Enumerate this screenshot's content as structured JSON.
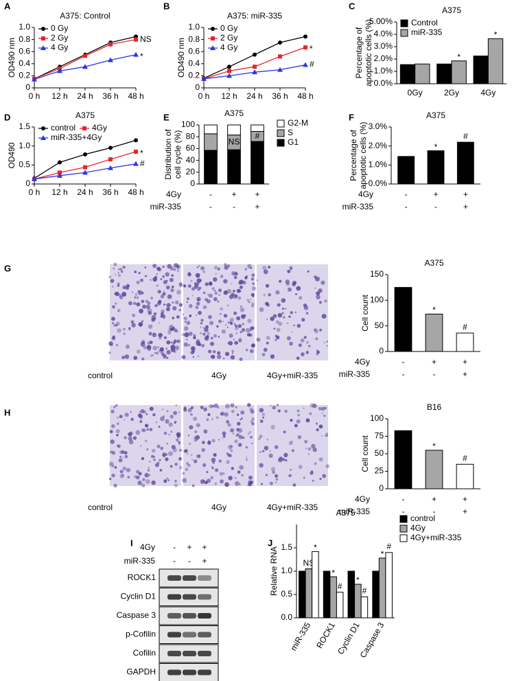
{
  "chart_data": [
    {
      "panel": "A",
      "type": "line",
      "title": "A375: Control",
      "ylabel": "OD490 nm",
      "categories": [
        "0 h",
        "12 h",
        "24 h",
        "36 h",
        "48 h"
      ],
      "ylim": [
        0,
        1
      ],
      "yticks": [
        0,
        0.2,
        0.4,
        0.6,
        0.8,
        {
          "value": 1,
          "label": "1.0"
        }
      ],
      "legend": "upper left",
      "series": [
        {
          "name": "0 Gy",
          "color": "#000000",
          "marker": "circle",
          "values": [
            0.15,
            0.35,
            0.55,
            0.75,
            0.85
          ]
        },
        {
          "name": "2 Gy",
          "color": "#e8262a",
          "marker": "square",
          "values": [
            0.15,
            0.32,
            0.53,
            0.72,
            0.8
          ],
          "annotations": [
            null,
            null,
            null,
            null,
            "NS"
          ]
        },
        {
          "name": "4 Gy",
          "color": "#2b35e8",
          "marker": "triangle",
          "values": [
            0.14,
            0.28,
            0.35,
            0.46,
            0.55
          ],
          "annotations": [
            null,
            null,
            null,
            null,
            "*"
          ]
        }
      ]
    },
    {
      "panel": "B",
      "type": "line",
      "title": "A375: miR-335",
      "ylabel": "OD490 nm",
      "categories": [
        "0 h",
        "12 h",
        "24 h",
        "36 h",
        "48 h"
      ],
      "ylim": [
        0,
        1
      ],
      "yticks": [
        0,
        0.2,
        0.4,
        0.6,
        0.8,
        {
          "value": 1,
          "label": "1.0"
        }
      ],
      "legend": "upper left",
      "series": [
        {
          "name": "0 Gy",
          "color": "#000000",
          "marker": "circle",
          "values": [
            0.16,
            0.35,
            0.55,
            0.75,
            0.85
          ]
        },
        {
          "name": "2 Gy",
          "color": "#e8262a",
          "marker": "square",
          "values": [
            0.15,
            0.28,
            0.35,
            0.52,
            0.67
          ],
          "annotations": [
            null,
            null,
            null,
            null,
            "*"
          ]
        },
        {
          "name": "4 Gy",
          "color": "#2b35e8",
          "marker": "triangle",
          "values": [
            0.15,
            0.2,
            0.26,
            0.3,
            0.38
          ],
          "annotations": [
            null,
            null,
            null,
            null,
            "#"
          ]
        }
      ]
    },
    {
      "panel": "C",
      "type": "bar",
      "title": "A375",
      "ylabel": [
        "Percentage of",
        "apoptotic cells (%)"
      ],
      "categories": [
        "0Gy",
        "2Gy",
        "4Gy"
      ],
      "ylim": [
        0,
        5
      ],
      "yticks": [
        {
          "value": 0,
          "label": "0.0%"
        },
        {
          "value": 1,
          "label": "1.0%"
        },
        {
          "value": 2,
          "label": "2.0%"
        },
        {
          "value": 3,
          "label": "3.0%"
        },
        {
          "value": 4,
          "label": "4.0%"
        },
        {
          "value": 5,
          "label": "5.00%"
        }
      ],
      "legend": "upper left",
      "series": [
        {
          "name": "Control",
          "color": "#000000",
          "values": [
            1.55,
            1.6,
            2.25
          ]
        },
        {
          "name": "miR-335",
          "color": "#a6a6a6",
          "values": [
            1.6,
            1.85,
            3.65
          ],
          "annotations": [
            null,
            "*",
            "*"
          ]
        }
      ]
    },
    {
      "panel": "D",
      "type": "line",
      "title": "A375",
      "ylabel": "OD490",
      "categories": [
        "0 h",
        "12 h",
        "24 h",
        "36 h",
        "48 h"
      ],
      "ylim": [
        0,
        1.5
      ],
      "yticks": [
        0,
        0.5,
        {
          "value": 1,
          "label": "1.0"
        },
        1.5
      ],
      "legend": "upper left",
      "legend_columns": 2,
      "series": [
        {
          "name": "control",
          "color": "#000000",
          "marker": "circle",
          "values": [
            0.15,
            0.57,
            0.78,
            0.95,
            1.15
          ]
        },
        {
          "name": "4Gy",
          "color": "#e8262a",
          "marker": "square",
          "values": [
            0.13,
            0.3,
            0.44,
            0.65,
            0.85
          ],
          "annotations": [
            null,
            null,
            null,
            null,
            "*"
          ]
        },
        {
          "name": "miR-335+4Gy",
          "color": "#2b35e8",
          "marker": "triangle",
          "values": [
            0.13,
            0.22,
            0.3,
            0.42,
            0.53
          ],
          "annotations": [
            null,
            null,
            null,
            null,
            "#"
          ]
        }
      ]
    },
    {
      "panel": "E",
      "type": "bar",
      "stacked": true,
      "title": "A375",
      "ylabel": [
        "Distribution of",
        "cell cycle (%)"
      ],
      "ylim": [
        0,
        100
      ],
      "yticks": [
        0,
        20,
        40,
        60,
        80,
        100
      ],
      "legend": "right",
      "legend_order": "reverse",
      "series": [
        {
          "name": "G1",
          "color": "#000000",
          "values": [
            57,
            58,
            72
          ]
        },
        {
          "name": "S",
          "color": "#a6a6a6",
          "values": [
            28,
            25,
            17
          ],
          "annotations": [
            null,
            "NS",
            "#"
          ]
        },
        {
          "name": "G2-M",
          "color": "#ffffff",
          "values": [
            15,
            17,
            11
          ]
        }
      ],
      "conditions": [
        {
          "name": "4Gy",
          "values": [
            "-",
            "+",
            "+"
          ]
        },
        {
          "name": "miR-335",
          "values": [
            "-",
            "-",
            "+"
          ]
        }
      ]
    },
    {
      "panel": "F",
      "type": "bar",
      "title": "A375",
      "ylabel": [
        "Percentage of",
        "apoptotic cells (%)"
      ],
      "ylim": [
        0,
        3
      ],
      "yticks": [
        {
          "value": 0,
          "label": "0.0%"
        },
        {
          "value": 1,
          "label": "1.0%"
        },
        {
          "value": 2,
          "label": "2.0%"
        },
        {
          "value": 3,
          "label": "3.0%"
        }
      ],
      "values": [
        1.45,
        1.75,
        2.2
      ],
      "colors": [
        "#000000",
        "#000000",
        "#000000"
      ],
      "annotations": [
        null,
        "*",
        "#"
      ],
      "conditions": [
        {
          "name": "4Gy",
          "values": [
            "-",
            "+",
            "+"
          ]
        },
        {
          "name": "miR-335",
          "values": [
            "-",
            "-",
            "+"
          ]
        }
      ]
    },
    {
      "type": "bar",
      "title": "A375",
      "ylabel": "Cell count",
      "ylim": [
        0,
        150
      ],
      "yticks": [
        0,
        50,
        100,
        150
      ],
      "values": [
        125,
        73,
        36
      ],
      "colors": [
        "#000000",
        "#a6a6a6",
        "#ffffff"
      ],
      "annotations": [
        null,
        "*",
        "#"
      ],
      "conditions": [
        {
          "name": "4Gy",
          "values": [
            "-",
            "+",
            "+"
          ]
        },
        {
          "name": "miR-335",
          "values": [
            "-",
            "-",
            "+"
          ]
        }
      ]
    },
    {
      "type": "bar",
      "title": "B16",
      "ylabel": "Cell count",
      "ylim": [
        0,
        100
      ],
      "yticks": [
        0,
        25,
        50,
        75,
        100
      ],
      "values": [
        83,
        55,
        35
      ],
      "colors": [
        "#000000",
        "#a6a6a6",
        "#ffffff"
      ],
      "annotations": [
        null,
        "*",
        "#"
      ],
      "conditions": [
        {
          "name": "4Gy",
          "values": [
            "-",
            "+",
            "+"
          ]
        },
        {
          "name": "miR-335",
          "values": [
            "-",
            "-",
            "+"
          ]
        }
      ]
    },
    {
      "panel": "J",
      "type": "bar",
      "title": "A375",
      "ylabel": "Relative RNA",
      "categories": [
        "miR-335",
        "ROCK1",
        "Cyclin D1",
        "Caspase 3"
      ],
      "xtick_rotation": -60,
      "ylim": [
        0,
        2
      ],
      "yticks": [
        {
          "value": 0,
          "label": "0.0"
        },
        0.5,
        {
          "value": 1,
          "label": "1.0"
        },
        1.5
      ],
      "legend": "outside right",
      "series": [
        {
          "name": "control",
          "color": "#000000",
          "values": [
            1,
            1,
            1,
            1
          ]
        },
        {
          "name": "4Gy",
          "color": "#a6a6a6",
          "values": [
            1.05,
            0.88,
            0.72,
            1.28
          ],
          "annotations": [
            "NS",
            "*",
            "*",
            "*"
          ]
        },
        {
          "name": "4Gy+miR-335",
          "color": "#ffffff",
          "values": [
            1.42,
            0.55,
            0.45,
            1.4
          ],
          "annotations": [
            "*",
            "#",
            "#",
            "#"
          ]
        }
      ]
    }
  ],
  "micrographs": [
    {
      "panel": "G",
      "labels": [
        "control",
        "4Gy",
        "4Gy+miR-335"
      ]
    },
    {
      "panel": "H",
      "labels": [
        "control",
        "4Gy",
        "4Gy+miR-335"
      ]
    }
  ],
  "western_blot": {
    "panel": "I",
    "conditions": [
      {
        "name": "4Gy",
        "values": [
          "-",
          "+",
          "+"
        ]
      },
      {
        "name": "miR-335",
        "values": [
          "-",
          "-",
          "+"
        ]
      }
    ],
    "proteins": [
      "ROCK1",
      "Cyclin D1",
      "Caspase 3",
      "p-Cofilin",
      "Cofilin",
      "GAPDH"
    ]
  }
}
